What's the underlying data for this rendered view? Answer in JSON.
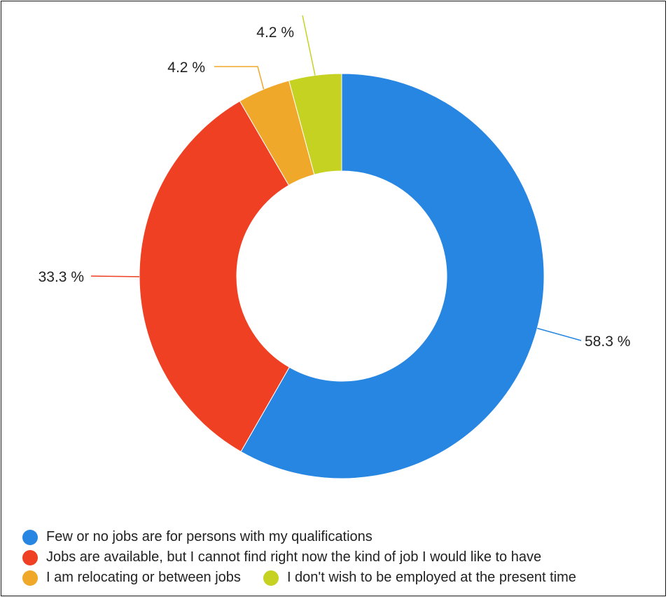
{
  "chart_data": {
    "type": "pie",
    "donut": true,
    "slices": [
      {
        "label": "Few or no jobs are for persons with my qualifications",
        "value": 58.3,
        "value_label": "58.3 %",
        "color": "#2686e2"
      },
      {
        "label": "Jobs are available, but I cannot find right now the kind of job I would like to have",
        "value": 33.3,
        "value_label": "33.3 %",
        "color": "#ef4023"
      },
      {
        "label": "I am relocating or between jobs",
        "value": 4.2,
        "value_label": "4.2 %",
        "color": "#f0a82a"
      },
      {
        "label": "I don't wish to be employed at the present time",
        "value": 4.2,
        "value_label": "4.2 %",
        "color": "#c6d222"
      }
    ],
    "legend_position": "bottom",
    "start_angle": "12 o'clock",
    "direction": "clockwise"
  }
}
